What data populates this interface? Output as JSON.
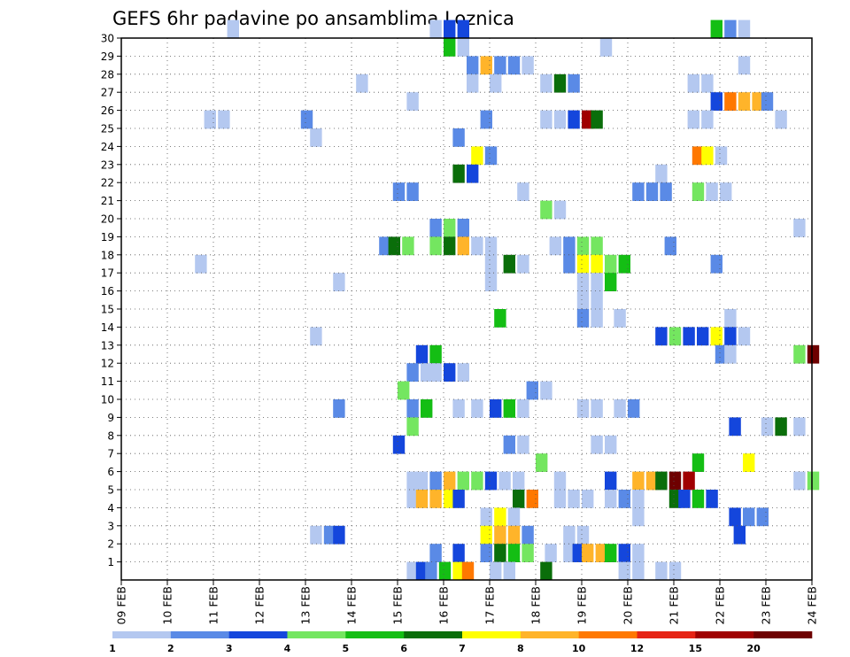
{
  "chart_data": {
    "type": "heatmap",
    "title": "GEFS 6hr padavine po ansamblima Loznica",
    "y_ticks": [
      "1",
      "2",
      "3",
      "4",
      "5",
      "6",
      "7",
      "8",
      "9",
      "10",
      "11",
      "12",
      "13",
      "14",
      "15",
      "16",
      "17",
      "18",
      "19",
      "20",
      "21",
      "22",
      "23",
      "24",
      "25",
      "26",
      "27",
      "28",
      "29",
      "30"
    ],
    "x_ticks": [
      "09 FEB",
      "10 FEB",
      "11 FEB",
      "12 FEB",
      "13 FEB",
      "14 FEB",
      "15 FEB",
      "16 FEB",
      "17 FEB",
      "18 FEB",
      "19 FEB",
      "20 FEB",
      "21 FEB",
      "22 FEB",
      "23 FEB",
      "24 FEB"
    ],
    "x_range_days": [
      0,
      15
    ],
    "y_range": [
      0,
      30
    ],
    "grid": "dotted",
    "colorbar": {
      "labels": [
        "1",
        "2",
        "3",
        "4",
        "5",
        "6",
        "7",
        "8",
        "10",
        "12",
        "15",
        "20"
      ],
      "colors": [
        "#b4c8f0",
        "#5a8ae6",
        "#1446dc",
        "#74e660",
        "#14be14",
        "#0a6e0a",
        "#ffff00",
        "#ffb42a",
        "#ff7800",
        "#e62314",
        "#a00000",
        "#6e0000"
      ]
    },
    "cells": [
      [
        2.3,
        30,
        1
      ],
      [
        6.7,
        30,
        1
      ],
      [
        7.0,
        30,
        3
      ],
      [
        7.3,
        30,
        3
      ],
      [
        12.8,
        30,
        5
      ],
      [
        13.1,
        30,
        2
      ],
      [
        13.4,
        30,
        1
      ],
      [
        7.0,
        29,
        5
      ],
      [
        7.3,
        29,
        1
      ],
      [
        10.4,
        29,
        1
      ],
      [
        7.5,
        28,
        2
      ],
      [
        7.8,
        28,
        8
      ],
      [
        8.1,
        28,
        2
      ],
      [
        8.4,
        28,
        2
      ],
      [
        8.7,
        28,
        1
      ],
      [
        13.4,
        28,
        1
      ],
      [
        5.1,
        27,
        1
      ],
      [
        7.5,
        27,
        1
      ],
      [
        8.0,
        27,
        1
      ],
      [
        9.1,
        27,
        1
      ],
      [
        9.4,
        27,
        6
      ],
      [
        9.7,
        27,
        2
      ],
      [
        12.3,
        27,
        1
      ],
      [
        12.6,
        27,
        1
      ],
      [
        6.2,
        26,
        1
      ],
      [
        12.8,
        26,
        3
      ],
      [
        13.1,
        26,
        9
      ],
      [
        13.4,
        26,
        8
      ],
      [
        13.7,
        26,
        8
      ],
      [
        13.9,
        26,
        2
      ],
      [
        1.8,
        25,
        1
      ],
      [
        2.1,
        25,
        1
      ],
      [
        3.9,
        25,
        2
      ],
      [
        7.8,
        25,
        2
      ],
      [
        9.1,
        25,
        1
      ],
      [
        9.4,
        25,
        1
      ],
      [
        9.7,
        25,
        3
      ],
      [
        10.0,
        25,
        11
      ],
      [
        10.2,
        25,
        6
      ],
      [
        12.3,
        25,
        1
      ],
      [
        12.6,
        25,
        1
      ],
      [
        14.2,
        25,
        1
      ],
      [
        4.1,
        24,
        1
      ],
      [
        7.2,
        24,
        2
      ],
      [
        7.6,
        23,
        7
      ],
      [
        7.9,
        23,
        2
      ],
      [
        12.4,
        23,
        9
      ],
      [
        12.6,
        23,
        7
      ],
      [
        12.9,
        23,
        1
      ],
      [
        7.2,
        22,
        6
      ],
      [
        7.5,
        22,
        3
      ],
      [
        11.6,
        22,
        1
      ],
      [
        5.9,
        21,
        2
      ],
      [
        6.2,
        21,
        2
      ],
      [
        8.6,
        21,
        1
      ],
      [
        11.1,
        21,
        2
      ],
      [
        11.4,
        21,
        2
      ],
      [
        11.7,
        21,
        2
      ],
      [
        12.4,
        21,
        4
      ],
      [
        12.7,
        21,
        1
      ],
      [
        13.0,
        21,
        1
      ],
      [
        9.1,
        20,
        4
      ],
      [
        9.4,
        20,
        1
      ],
      [
        6.7,
        19,
        2
      ],
      [
        7.0,
        19,
        4
      ],
      [
        7.3,
        19,
        2
      ],
      [
        14.6,
        19,
        1
      ],
      [
        5.6,
        18,
        2
      ],
      [
        5.8,
        18,
        6
      ],
      [
        6.1,
        18,
        4
      ],
      [
        6.7,
        18,
        4
      ],
      [
        7.0,
        18,
        6
      ],
      [
        7.3,
        18,
        8
      ],
      [
        7.6,
        18,
        1
      ],
      [
        7.9,
        18,
        1
      ],
      [
        9.3,
        18,
        1
      ],
      [
        9.6,
        18,
        2
      ],
      [
        9.9,
        18,
        4
      ],
      [
        10.2,
        18,
        4
      ],
      [
        11.8,
        18,
        2
      ],
      [
        1.6,
        17,
        1
      ],
      [
        7.9,
        17,
        1
      ],
      [
        8.3,
        17,
        6
      ],
      [
        8.6,
        17,
        1
      ],
      [
        9.6,
        17,
        2
      ],
      [
        9.9,
        17,
        7
      ],
      [
        10.2,
        17,
        7
      ],
      [
        10.5,
        17,
        4
      ],
      [
        10.8,
        17,
        5
      ],
      [
        12.8,
        17,
        2
      ],
      [
        4.6,
        16,
        1
      ],
      [
        7.9,
        16,
        1
      ],
      [
        9.9,
        16,
        1
      ],
      [
        10.2,
        16,
        1
      ],
      [
        10.5,
        16,
        5
      ],
      [
        9.9,
        15,
        1
      ],
      [
        10.2,
        15,
        1
      ],
      [
        8.1,
        14,
        5
      ],
      [
        9.9,
        14,
        2
      ],
      [
        10.2,
        14,
        1
      ],
      [
        10.7,
        14,
        1
      ],
      [
        13.1,
        14,
        1
      ],
      [
        4.1,
        13,
        1
      ],
      [
        11.6,
        13,
        3
      ],
      [
        11.9,
        13,
        4
      ],
      [
        12.2,
        13,
        3
      ],
      [
        12.5,
        13,
        3
      ],
      [
        12.8,
        13,
        7
      ],
      [
        13.1,
        13,
        3
      ],
      [
        13.4,
        13,
        1
      ],
      [
        6.4,
        12,
        3
      ],
      [
        6.7,
        12,
        5
      ],
      [
        12.9,
        12,
        2
      ],
      [
        13.1,
        12,
        1
      ],
      [
        14.6,
        12,
        4
      ],
      [
        14.9,
        12,
        12
      ],
      [
        6.2,
        11,
        2
      ],
      [
        6.5,
        11,
        1
      ],
      [
        6.7,
        11,
        1
      ],
      [
        7.0,
        11,
        3
      ],
      [
        7.3,
        11,
        1
      ],
      [
        6.0,
        10,
        4
      ],
      [
        8.8,
        10,
        2
      ],
      [
        9.1,
        10,
        1
      ],
      [
        4.6,
        9,
        2
      ],
      [
        6.2,
        9,
        2
      ],
      [
        6.5,
        9,
        5
      ],
      [
        7.2,
        9,
        1
      ],
      [
        7.6,
        9,
        1
      ],
      [
        8.0,
        9,
        3
      ],
      [
        8.3,
        9,
        5
      ],
      [
        8.6,
        9,
        1
      ],
      [
        9.9,
        9,
        1
      ],
      [
        10.2,
        9,
        1
      ],
      [
        10.7,
        9,
        1
      ],
      [
        11.0,
        9,
        2
      ],
      [
        6.2,
        8,
        4
      ],
      [
        13.2,
        8,
        3
      ],
      [
        13.9,
        8,
        1
      ],
      [
        14.2,
        8,
        6
      ],
      [
        14.6,
        8,
        1
      ],
      [
        5.9,
        7,
        3
      ],
      [
        8.3,
        7,
        2
      ],
      [
        8.6,
        7,
        1
      ],
      [
        10.2,
        7,
        1
      ],
      [
        10.5,
        7,
        1
      ],
      [
        9.0,
        6,
        4
      ],
      [
        12.4,
        6,
        5
      ],
      [
        13.5,
        6,
        7
      ],
      [
        6.2,
        5,
        1
      ],
      [
        6.4,
        5,
        1
      ],
      [
        6.7,
        5,
        2
      ],
      [
        7.0,
        5,
        8
      ],
      [
        7.3,
        5,
        4
      ],
      [
        7.6,
        5,
        4
      ],
      [
        7.9,
        5,
        3
      ],
      [
        8.2,
        5,
        1
      ],
      [
        8.5,
        5,
        1
      ],
      [
        9.4,
        5,
        1
      ],
      [
        10.5,
        5,
        3
      ],
      [
        11.1,
        5,
        8
      ],
      [
        11.4,
        5,
        8
      ],
      [
        11.6,
        5,
        6
      ],
      [
        11.9,
        5,
        12
      ],
      [
        12.2,
        5,
        11
      ],
      [
        14.6,
        5,
        1
      ],
      [
        14.9,
        5,
        4
      ],
      [
        6.2,
        4,
        1
      ],
      [
        6.4,
        4,
        8
      ],
      [
        6.7,
        4,
        8
      ],
      [
        7.0,
        4,
        7
      ],
      [
        7.2,
        4,
        3
      ],
      [
        8.5,
        4,
        6
      ],
      [
        8.8,
        4,
        9
      ],
      [
        9.4,
        4,
        1
      ],
      [
        9.7,
        4,
        1
      ],
      [
        10.0,
        4,
        1
      ],
      [
        10.5,
        4,
        1
      ],
      [
        10.8,
        4,
        2
      ],
      [
        11.1,
        4,
        1
      ],
      [
        11.9,
        4,
        6
      ],
      [
        12.1,
        4,
        3
      ],
      [
        12.4,
        4,
        5
      ],
      [
        12.7,
        4,
        3
      ],
      [
        7.8,
        3,
        1
      ],
      [
        8.1,
        3,
        7
      ],
      [
        8.4,
        3,
        1
      ],
      [
        11.1,
        3,
        1
      ],
      [
        13.2,
        3,
        3
      ],
      [
        13.5,
        3,
        2
      ],
      [
        13.8,
        3,
        2
      ],
      [
        4.1,
        2,
        1
      ],
      [
        4.4,
        2,
        2
      ],
      [
        4.6,
        2,
        3
      ],
      [
        7.8,
        2,
        7
      ],
      [
        8.1,
        2,
        8
      ],
      [
        8.4,
        2,
        8
      ],
      [
        8.7,
        2,
        2
      ],
      [
        9.6,
        2,
        1
      ],
      [
        9.9,
        2,
        1
      ],
      [
        13.3,
        2,
        3
      ],
      [
        6.7,
        1,
        2
      ],
      [
        7.2,
        1,
        3
      ],
      [
        7.8,
        1,
        2
      ],
      [
        8.1,
        1,
        6
      ],
      [
        8.4,
        1,
        5
      ],
      [
        8.7,
        1,
        4
      ],
      [
        9.2,
        1,
        1
      ],
      [
        9.6,
        1,
        1
      ],
      [
        9.8,
        1,
        3
      ],
      [
        10.0,
        1,
        8
      ],
      [
        10.3,
        1,
        8
      ],
      [
        10.5,
        1,
        5
      ],
      [
        10.8,
        1,
        3
      ],
      [
        11.1,
        1,
        1
      ],
      [
        6.2,
        0,
        1
      ],
      [
        6.4,
        0,
        3
      ],
      [
        6.6,
        0,
        2
      ],
      [
        6.9,
        0,
        5
      ],
      [
        7.2,
        0,
        7
      ],
      [
        7.4,
        0,
        9
      ],
      [
        8.0,
        0,
        1
      ],
      [
        8.3,
        0,
        1
      ],
      [
        9.1,
        0,
        6
      ],
      [
        10.8,
        0,
        1
      ],
      [
        11.1,
        0,
        1
      ],
      [
        11.6,
        0,
        1
      ],
      [
        11.9,
        0,
        1
      ]
    ]
  }
}
